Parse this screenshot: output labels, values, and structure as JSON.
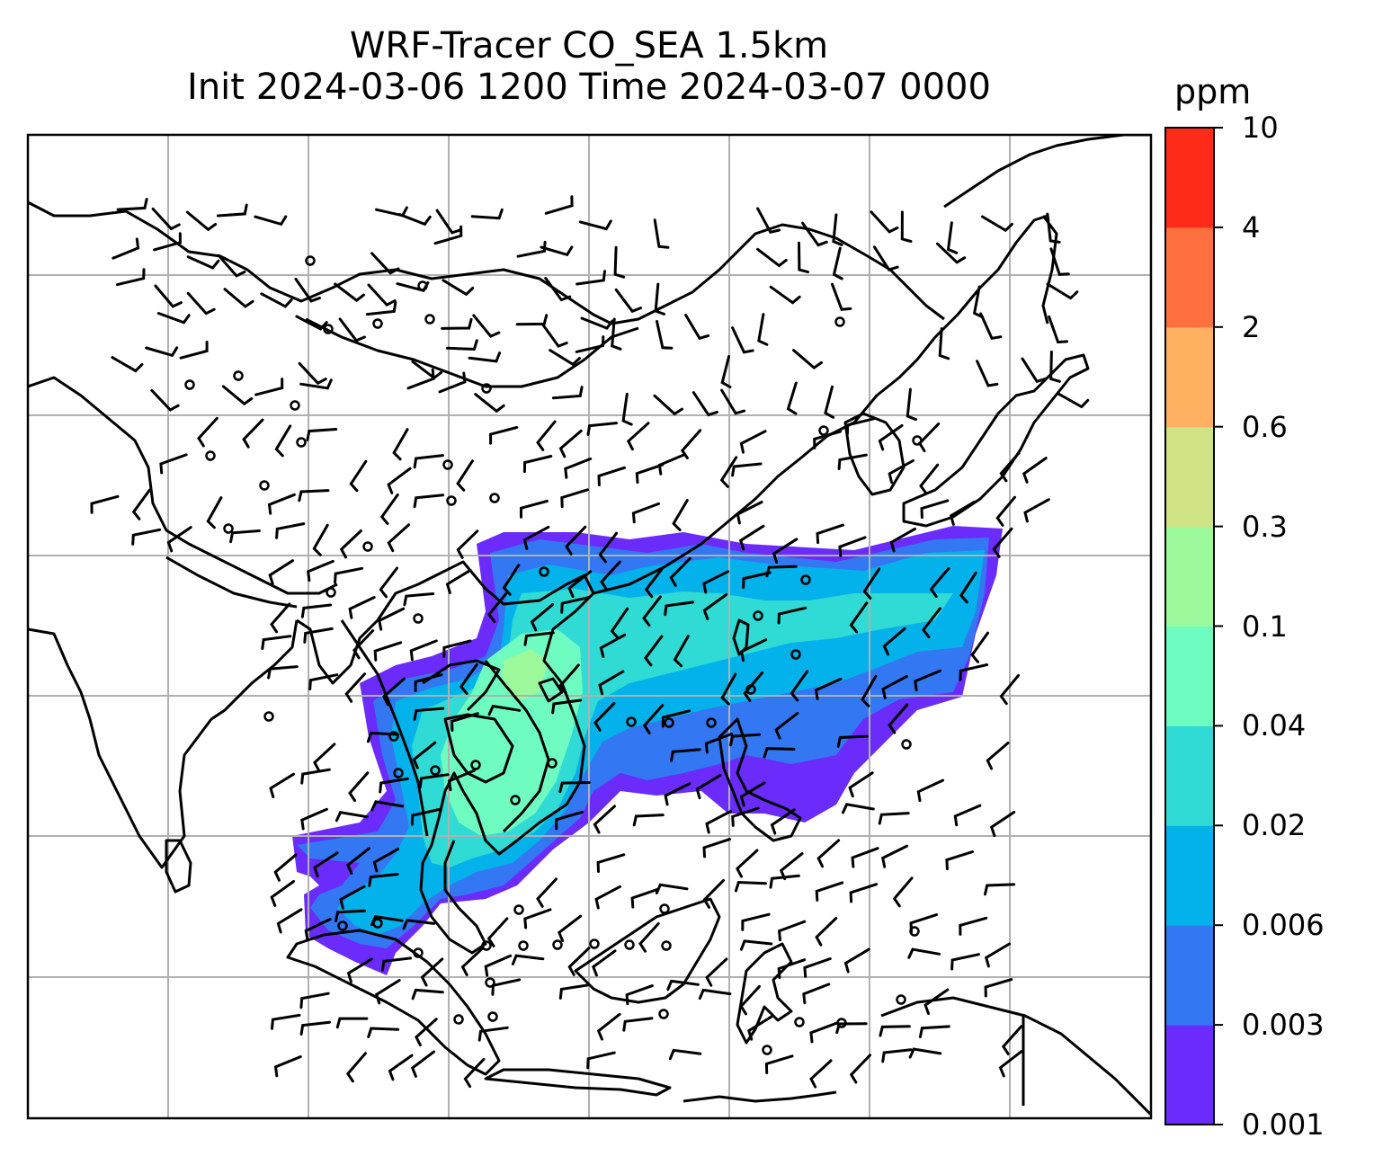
{
  "title": {
    "line1": "WRF-Tracer CO_SEA 1.5km",
    "line2": "Init 2024-03-06 1200 Time 2024-03-07 0000"
  },
  "colorbar": {
    "units": "ppm",
    "levels": [
      "0.001",
      "0.003",
      "0.006",
      "0.02",
      "0.04",
      "0.1",
      "0.3",
      "0.6",
      "2",
      "4",
      "10"
    ],
    "colors": [
      "#6a2bfb",
      "#3377f3",
      "#03b2ea",
      "#2fdbd4",
      "#6ffcc0",
      "#9bf89b",
      "#cfe284",
      "#ffb060",
      "#ff7040",
      "#fe2b18"
    ]
  },
  "map": {
    "background": "#ffffff",
    "gridline_color": "#b0b0b0",
    "coastline_color": "#000000",
    "wind_barb_color": "#000000"
  }
}
